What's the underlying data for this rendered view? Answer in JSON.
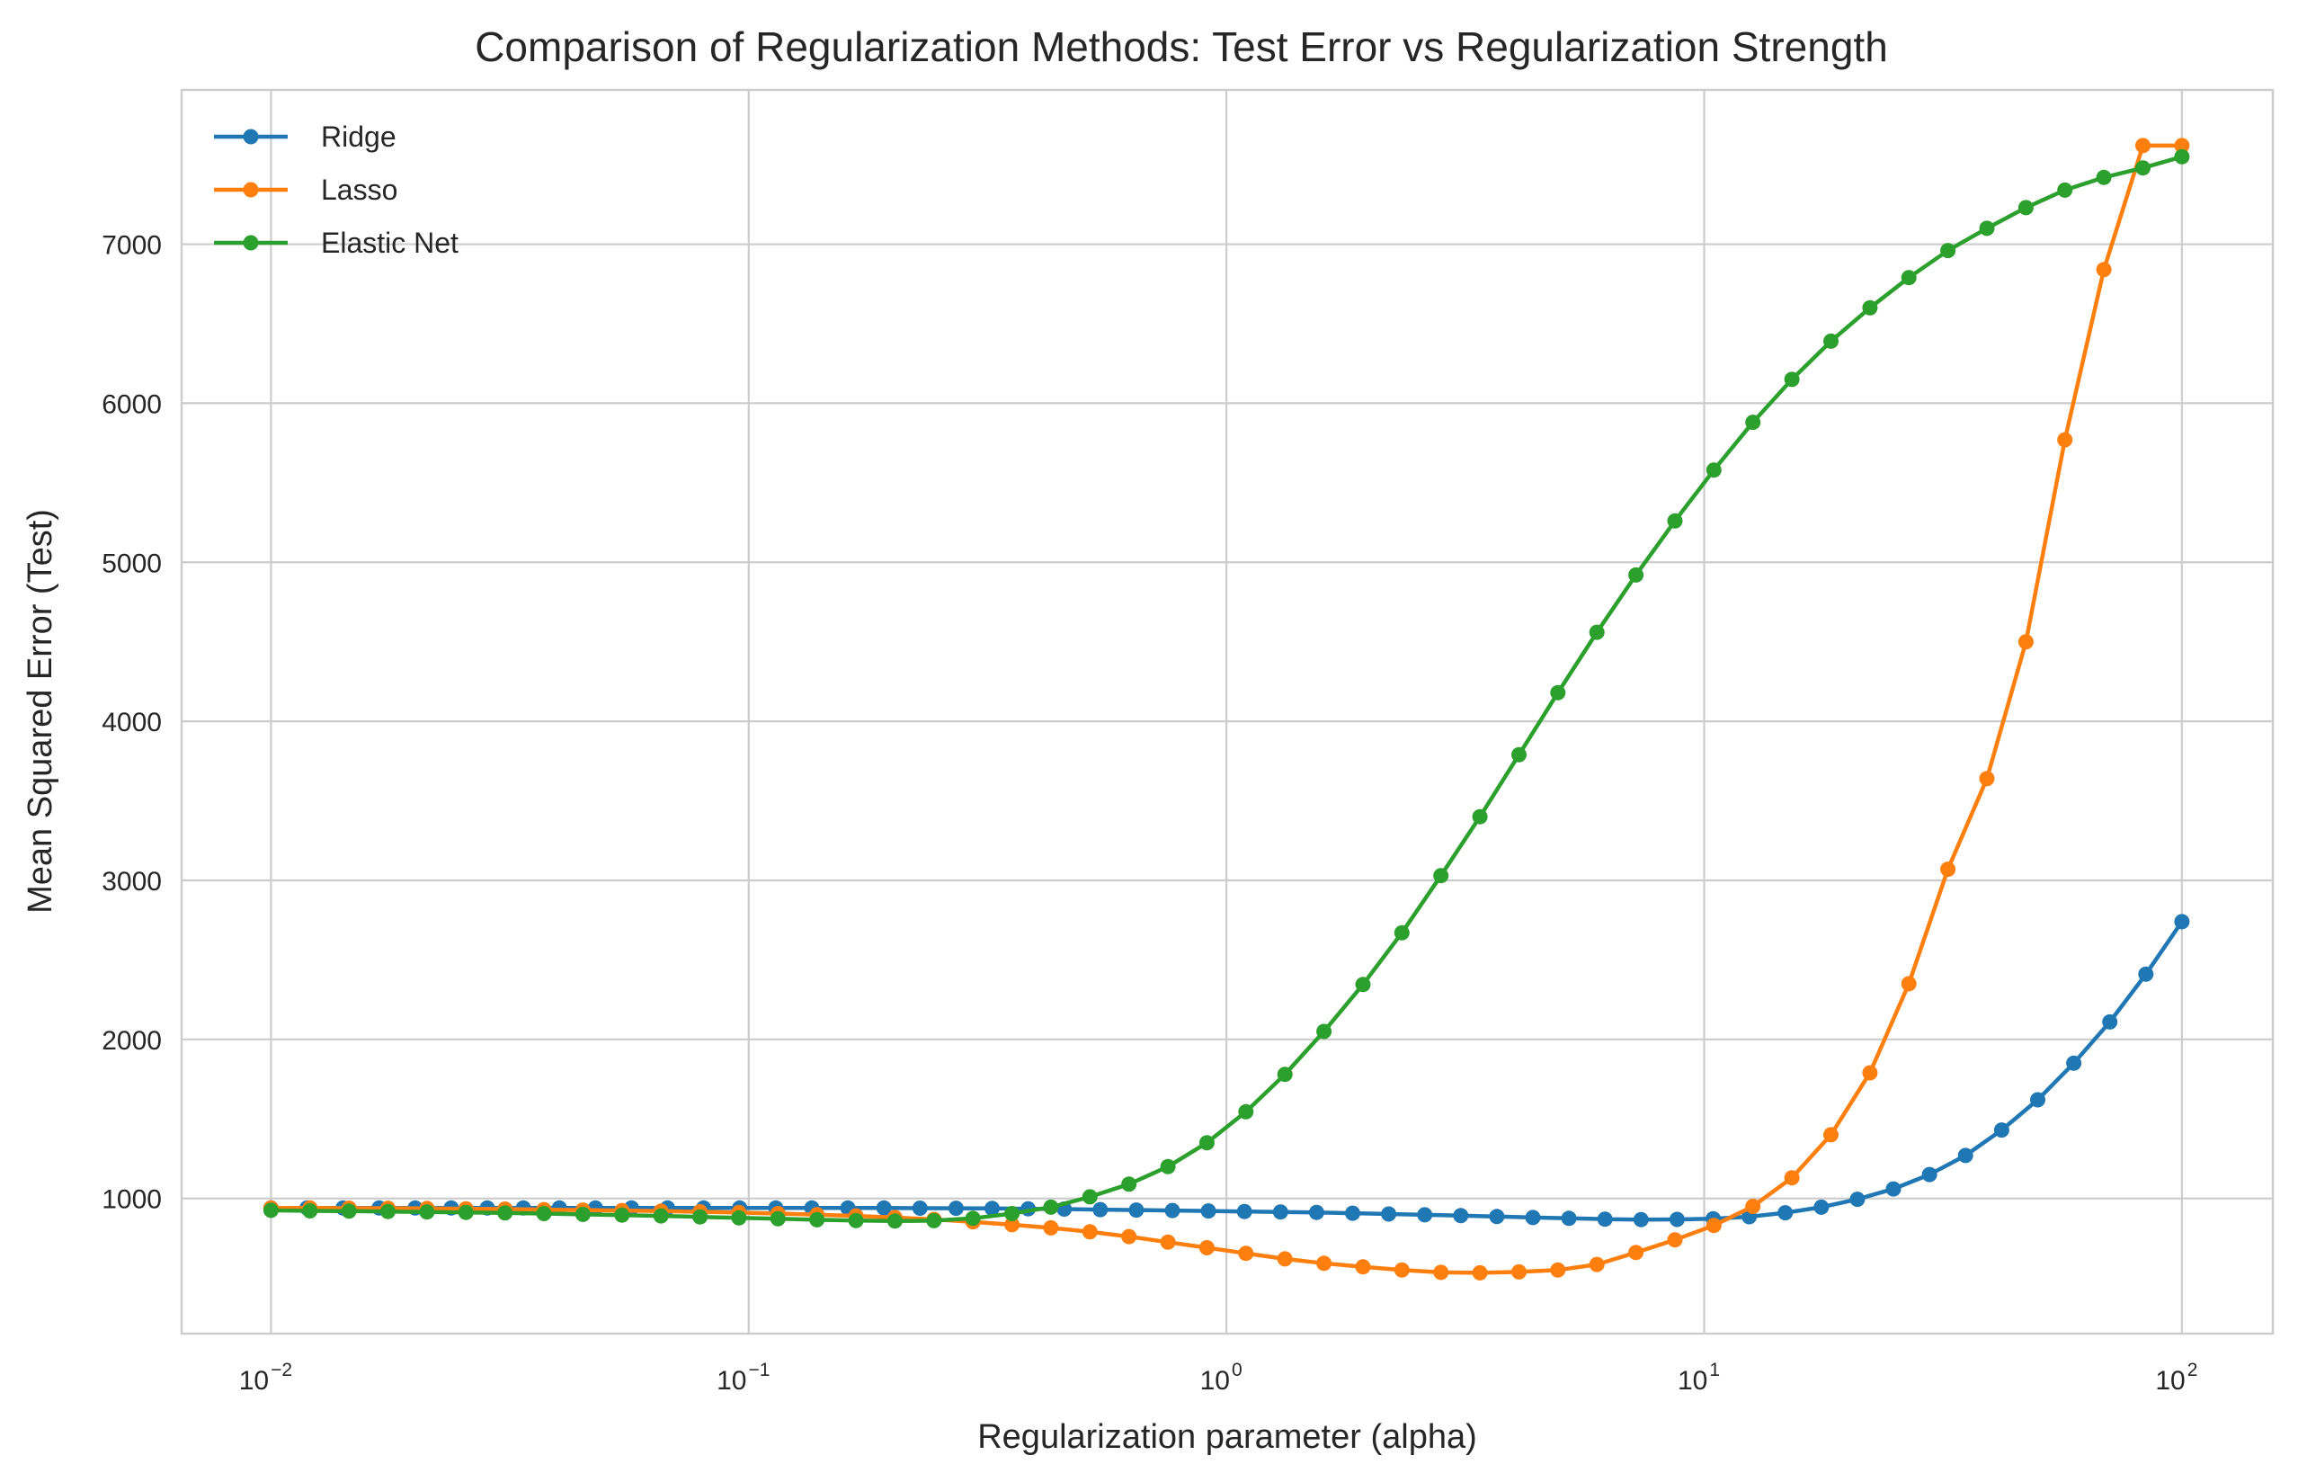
{
  "chart_data": {
    "type": "line",
    "title": "Comparison of Regularization Methods: Test Error vs Regularization Strength",
    "xlabel": "Regularization parameter (alpha)",
    "ylabel": "Mean Squared Error (Test)",
    "xscale": "log",
    "xlim": [
      0.0065,
      155
    ],
    "ylim": [
      150,
      7970
    ],
    "grid": true,
    "legend_position": "upper-left",
    "x_ticks": [
      {
        "base": "10",
        "exp": "−2",
        "value": 0.01
      },
      {
        "base": "10",
        "exp": "−1",
        "value": 0.1
      },
      {
        "base": "10",
        "exp": "0",
        "value": 1
      },
      {
        "base": "10",
        "exp": "1",
        "value": 10
      },
      {
        "base": "10",
        "exp": "2",
        "value": 100
      }
    ],
    "y_ticks": [
      {
        "label": "1000",
        "value": 1000
      },
      {
        "label": "2000",
        "value": 2000
      },
      {
        "label": "3000",
        "value": 3000
      },
      {
        "label": "4000",
        "value": 4000
      },
      {
        "label": "5000",
        "value": 5000
      },
      {
        "label": "6000",
        "value": 6000
      },
      {
        "label": "7000",
        "value": 7000
      }
    ],
    "x_log_range": [
      -2,
      2
    ],
    "series": [
      {
        "name": "Ridge",
        "color": "#1f77b4",
        "values": [
          940,
          940,
          940,
          940,
          940,
          940,
          940,
          940,
          940,
          940,
          940,
          940,
          940,
          940,
          940,
          940,
          940,
          940,
          939,
          938,
          937,
          935,
          933,
          930,
          927,
          924,
          921,
          918,
          915,
          912,
          907,
          902,
          897,
          892,
          886,
          880,
          875,
          870,
          867,
          868,
          872,
          885,
          910,
          945,
          995,
          1060,
          1150,
          1270,
          1430,
          1620,
          1850,
          2110,
          2410,
          2740
        ]
      },
      {
        "name": "Lasso",
        "color": "#ff7f0e",
        "values": [
          940,
          940,
          939,
          938,
          937,
          935,
          933,
          930,
          927,
          924,
          920,
          916,
          911,
          905,
          898,
          890,
          880,
          868,
          853,
          835,
          815,
          790,
          760,
          725,
          690,
          655,
          620,
          592,
          570,
          550,
          535,
          532,
          538,
          550,
          585,
          660,
          740,
          830,
          950,
          1130,
          1400,
          1790,
          2350,
          3070,
          3640,
          4500,
          5770,
          6840,
          7620,
          7620
        ]
      },
      {
        "name": "Elastic Net",
        "color": "#2ca02c",
        "values": [
          925,
          922,
          920,
          918,
          915,
          912,
          909,
          905,
          900,
          895,
          890,
          884,
          878,
          872,
          866,
          861,
          858,
          860,
          875,
          905,
          945,
          1010,
          1090,
          1200,
          1350,
          1545,
          1780,
          2050,
          2345,
          2670,
          3030,
          3400,
          3790,
          4180,
          4560,
          4920,
          5260,
          5580,
          5880,
          6150,
          6390,
          6600,
          6790,
          6960,
          7100,
          7230,
          7340,
          7420,
          7480,
          7550
        ]
      }
    ]
  }
}
